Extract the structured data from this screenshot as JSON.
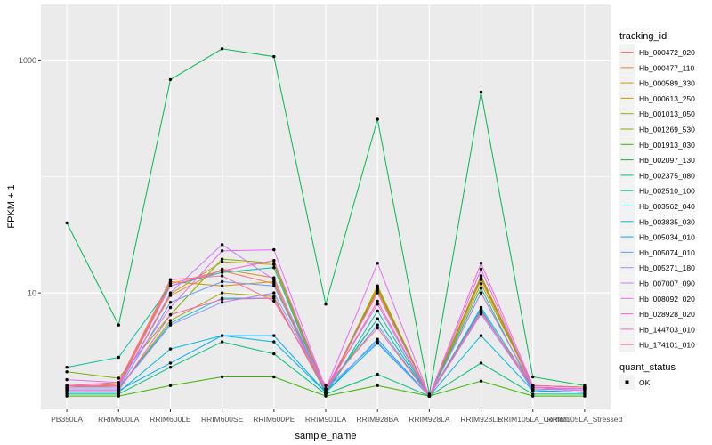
{
  "chart_data": {
    "type": "line",
    "title": "",
    "xlabel": "sample_name",
    "ylabel": "FPKM + 1",
    "y_scale": "log10",
    "ylim": [
      1.0,
      3000
    ],
    "y_ticks": [
      10,
      1000
    ],
    "y_tick_labels": [
      "10",
      "1000"
    ],
    "grid": true,
    "categories": [
      "PB350LA",
      "RRIM600LA",
      "RRIM600LE",
      "RRIM600SE",
      "RRIM600PE",
      "RRIM901LA",
      "RRIM928BA",
      "RRIM928LA",
      "RRIM928LE",
      "RRIM105LA_Control",
      "RRIM105LA_Stressed"
    ],
    "legend": {
      "title": "tracking_id",
      "placement": "right",
      "entries": [
        "Hb_000472_020",
        "Hb_000477_110",
        "Hb_000589_330",
        "Hb_000613_250",
        "Hb_001013_050",
        "Hb_001269_530",
        "Hb_001913_030",
        "Hb_002097_130",
        "Hb_002375_080",
        "Hb_002510_100",
        "Hb_003562_040",
        "Hb_003835_030",
        "Hb_005034_010",
        "Hb_005074_010",
        "Hb_005271_180",
        "Hb_007007_090",
        "Hb_008092_020",
        "Hb_028928_020",
        "Hb_144703_010",
        "Hb_174101_010"
      ]
    },
    "point_legend": {
      "title": "quant_status",
      "entries": [
        "OK"
      ]
    },
    "series": [
      {
        "name": "Hb_000472_020",
        "color": "#F8766D",
        "values": [
          1.6,
          1.6,
          12.0,
          15.5,
          12.0,
          1.35,
          11.0,
          1.3,
          14.0,
          1.6,
          1.55
        ]
      },
      {
        "name": "Hb_000477_110",
        "color": "#EA8331",
        "values": [
          1.55,
          1.6,
          9.5,
          16.0,
          13.5,
          1.35,
          11.0,
          1.3,
          13.0,
          1.55,
          1.5
        ]
      },
      {
        "name": "Hb_000589_330",
        "color": "#D89000",
        "values": [
          1.55,
          1.65,
          12.5,
          11.5,
          12.5,
          1.4,
          10.5,
          1.3,
          14.0,
          1.55,
          1.5
        ]
      },
      {
        "name": "Hb_000613_250",
        "color": "#C09B00",
        "values": [
          1.6,
          1.55,
          9.8,
          18.5,
          17.5,
          1.4,
          11.5,
          1.3,
          12.0,
          1.6,
          1.55
        ]
      },
      {
        "name": "Hb_001013_050",
        "color": "#A3A500",
        "values": [
          1.5,
          1.5,
          5.8,
          10.0,
          9.3,
          1.4,
          6.0,
          1.3,
          10.0,
          1.55,
          1.5
        ]
      },
      {
        "name": "Hb_001269_530",
        "color": "#7CAE00",
        "values": [
          2.1,
          1.85,
          6.5,
          19.5,
          18.0,
          1.45,
          11.0,
          1.3,
          13.5,
          1.6,
          1.55
        ]
      },
      {
        "name": "Hb_001913_030",
        "color": "#39B600",
        "values": [
          1.3,
          1.3,
          1.6,
          1.9,
          1.9,
          1.3,
          1.6,
          1.3,
          1.75,
          1.3,
          1.3
        ]
      },
      {
        "name": "Hb_002097_130",
        "color": "#00BB4E",
        "values": [
          40.0,
          5.3,
          680.0,
          1250.0,
          1070.0,
          8.0,
          310.0,
          1.35,
          530.0,
          1.9,
          1.6
        ]
      },
      {
        "name": "Hb_002375_080",
        "color": "#00BF7D",
        "values": [
          1.35,
          1.35,
          2.3,
          3.8,
          3.0,
          1.35,
          2.0,
          1.3,
          2.5,
          1.35,
          1.35
        ]
      },
      {
        "name": "Hb_002510_100",
        "color": "#00C1A3",
        "values": [
          2.3,
          2.8,
          11.5,
          15.0,
          16.5,
          1.35,
          7.0,
          1.3,
          11.0,
          1.45,
          1.4
        ]
      },
      {
        "name": "Hb_003562_040",
        "color": "#00BFC4",
        "values": [
          1.5,
          1.5,
          5.5,
          9.0,
          9.0,
          1.45,
          6.0,
          1.3,
          7.5,
          1.55,
          1.5
        ]
      },
      {
        "name": "Hb_003835_030",
        "color": "#00B8E7",
        "values": [
          1.4,
          1.4,
          3.3,
          4.3,
          3.8,
          1.4,
          3.7,
          1.3,
          4.3,
          1.45,
          1.4
        ]
      },
      {
        "name": "Hb_005034_010",
        "color": "#00A9FF",
        "values": [
          1.45,
          1.45,
          2.5,
          4.3,
          4.3,
          1.4,
          4.0,
          1.3,
          7.2,
          1.45,
          1.4
        ]
      },
      {
        "name": "Hb_005074_010",
        "color": "#619CFF",
        "values": [
          1.5,
          1.5,
          8.3,
          12.5,
          11.5,
          1.5,
          5.3,
          1.3,
          7.0,
          1.5,
          1.5
        ]
      },
      {
        "name": "Hb_005271_180",
        "color": "#9590FF",
        "values": [
          1.5,
          1.5,
          5.3,
          8.3,
          10.0,
          1.5,
          3.8,
          1.3,
          6.6,
          1.5,
          1.5
        ]
      },
      {
        "name": "Hb_007007_090",
        "color": "#C77CFF",
        "values": [
          1.55,
          1.55,
          10.0,
          26.0,
          13.0,
          1.5,
          8.0,
          1.3,
          10.0,
          1.55,
          1.5
        ]
      },
      {
        "name": "Hb_008092_020",
        "color": "#E76BF3",
        "values": [
          1.8,
          1.7,
          7.5,
          23.0,
          23.5,
          1.5,
          18.0,
          1.3,
          16.0,
          1.55,
          1.5
        ]
      },
      {
        "name": "Hb_028928_020",
        "color": "#FA62DB",
        "values": [
          1.6,
          1.6,
          11.5,
          15.5,
          19.0,
          1.5,
          10.0,
          1.3,
          18.0,
          1.6,
          1.55
        ]
      },
      {
        "name": "Hb_144703_010",
        "color": "#FF62BC",
        "values": [
          1.45,
          1.45,
          6.5,
          8.8,
          9.0,
          1.45,
          8.5,
          1.3,
          7.0,
          1.5,
          1.45
        ]
      },
      {
        "name": "Hb_174101_010",
        "color": "#FF6C91",
        "values": [
          1.6,
          1.7,
          13.0,
          14.0,
          8.5,
          1.6,
          5.0,
          1.3,
          6.8,
          1.6,
          1.55
        ]
      }
    ]
  }
}
